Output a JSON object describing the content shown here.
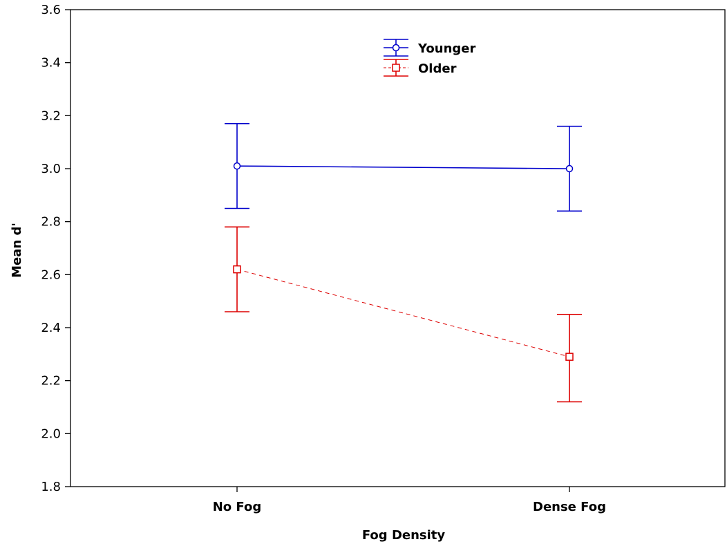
{
  "chart_data": {
    "type": "line",
    "title": "",
    "xlabel": "Fog Density",
    "ylabel": "Mean d'",
    "categories": [
      "No Fog",
      "Dense Fog"
    ],
    "ylim": [
      1.8,
      3.6
    ],
    "yticks": [
      "1.8",
      "2.0",
      "2.2",
      "2.4",
      "2.6",
      "2.8",
      "3.0",
      "3.2",
      "3.4",
      "3.6"
    ],
    "grid": false,
    "legend_position": "top-center",
    "series": [
      {
        "name": "Younger",
        "values": [
          3.01,
          3.0
        ],
        "lower": [
          2.85,
          2.84
        ],
        "upper": [
          3.17,
          3.16
        ],
        "color": "#0000cc",
        "line_style": "solid",
        "marker": "diamond"
      },
      {
        "name": "Older",
        "values": [
          2.62,
          2.29
        ],
        "lower": [
          2.46,
          2.12
        ],
        "upper": [
          2.78,
          2.45
        ],
        "color": "#dd0000",
        "line_style": "dashed",
        "marker": "square"
      }
    ]
  }
}
